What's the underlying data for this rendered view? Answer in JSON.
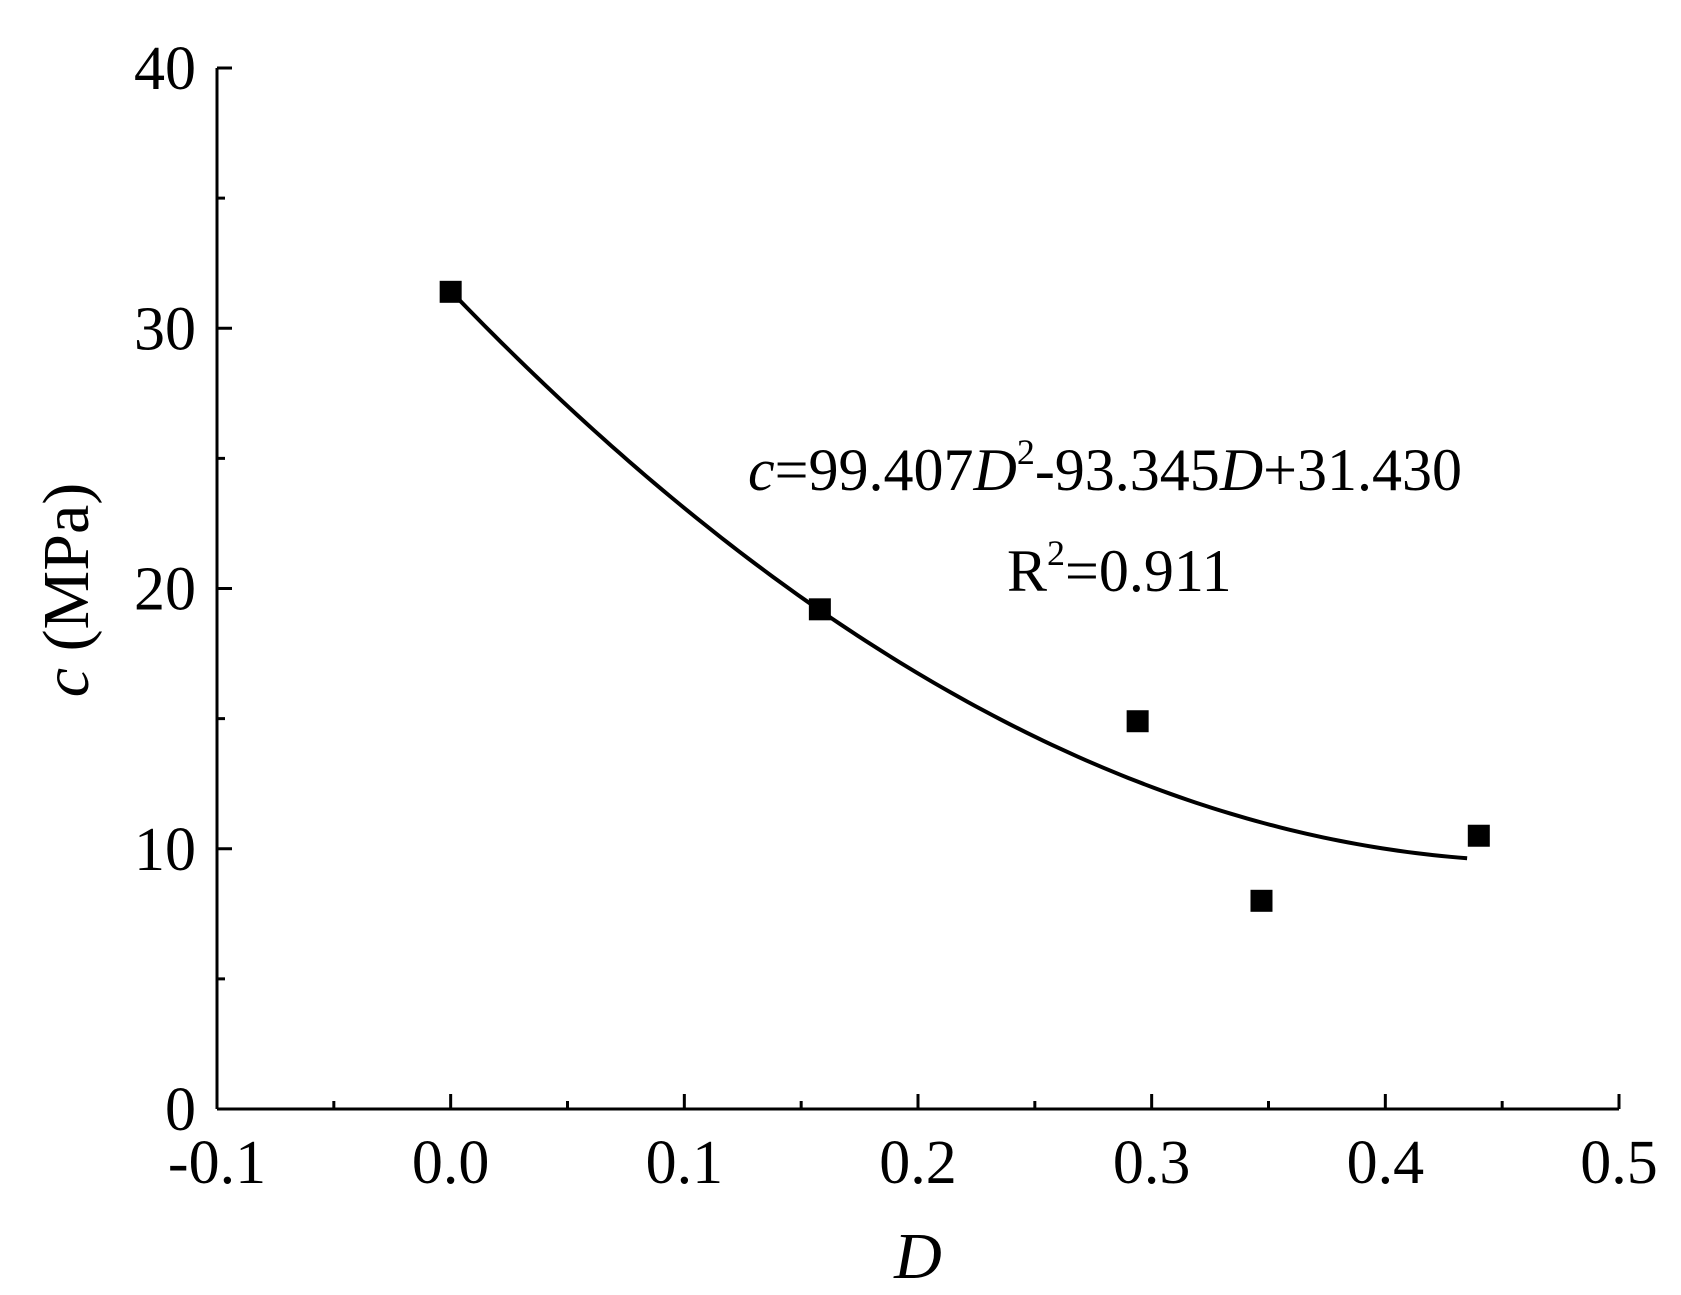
{
  "chart_data": {
    "type": "scatter",
    "xlabel": "D",
    "ylabel_var": "c",
    "ylabel_unit": "(MPa)",
    "xlim": [
      -0.1,
      0.5
    ],
    "ylim": [
      0,
      40
    ],
    "x_major_ticks": [
      -0.1,
      0.0,
      0.1,
      0.2,
      0.3,
      0.4,
      0.5
    ],
    "x_tick_labels": [
      "-0.1",
      "0.0",
      "0.1",
      "0.2",
      "0.3",
      "0.4",
      "0.5"
    ],
    "x_minor_ticks": [
      -0.05,
      0.05,
      0.15,
      0.25,
      0.35,
      0.45
    ],
    "y_major_ticks": [
      0,
      10,
      20,
      30,
      40
    ],
    "y_tick_labels": [
      "0",
      "10",
      "20",
      "30",
      "40"
    ],
    "y_minor_ticks": [
      5,
      15,
      25,
      35
    ],
    "grid": false,
    "points": [
      {
        "x": 0.0,
        "y": 31.4
      },
      {
        "x": 0.158,
        "y": 19.2
      },
      {
        "x": 0.294,
        "y": 14.9
      },
      {
        "x": 0.347,
        "y": 8.0
      },
      {
        "x": 0.44,
        "y": 10.5
      }
    ],
    "fit": {
      "a": 99.407,
      "b": -93.345,
      "c": 31.43,
      "x_range": [
        0.0,
        0.435
      ]
    },
    "annotation": {
      "eq_var": "c",
      "eq_part1": "=99.407",
      "eq_D1": "D",
      "eq_sup": "2",
      "eq_part2": "-93.345",
      "eq_D2": "D",
      "eq_part3": "+31.430",
      "r2_R": "R",
      "r2_sup": "2",
      "r2_value": "=0.911"
    }
  }
}
